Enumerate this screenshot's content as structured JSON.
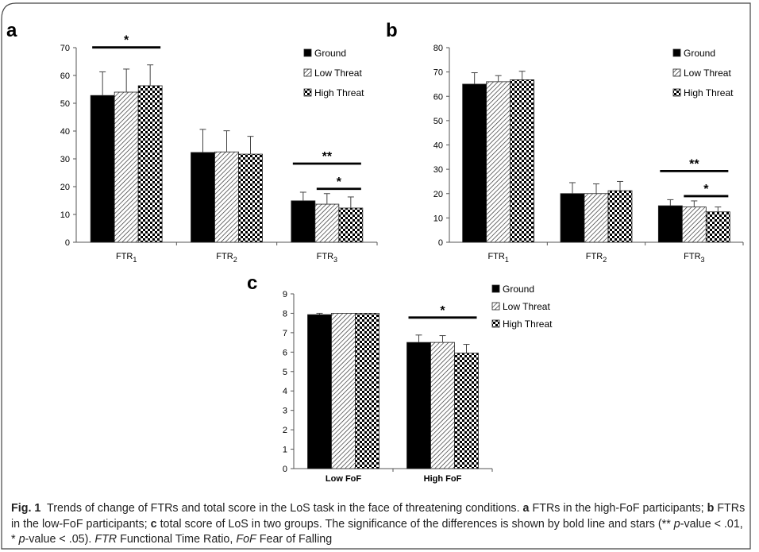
{
  "legend": [
    "Ground",
    "Low Threat",
    "High Threat"
  ],
  "caption": {
    "fig_label": "Fig. 1",
    "p1": "Trends of change of FTRs and total score in the LoS task in the face of threatening conditions.",
    "a": "a",
    "p2": "FTRs in the high-FoF participants;",
    "b": "b",
    "p3": "FTRs in the low-FoF participants;",
    "c": "c",
    "p4": "total score of LoS in two groups. The significance of the differences is shown by bold line and stars (**",
    "pv1": "p",
    "p5": "-value < .01, *",
    "pv2": "p",
    "p6": "-value < .05).",
    "ftr_abbr": "FTR",
    "p7": "Functional Time Ratio,",
    "fof_abbr": "FoF",
    "p8": "Fear of Falling"
  },
  "chart_data": [
    {
      "panel": "a",
      "type": "bar",
      "categories": [
        "FTR1",
        "FTR2",
        "FTR3"
      ],
      "ylim": [
        0,
        70
      ],
      "yticks": [
        0,
        10,
        20,
        30,
        40,
        50,
        60,
        70
      ],
      "series": [
        {
          "name": "Ground",
          "values": [
            52.8,
            32.3,
            14.9
          ],
          "errors": [
            8.5,
            8.3,
            3.1
          ]
        },
        {
          "name": "Low Threat",
          "values": [
            54.0,
            32.5,
            13.7
          ],
          "errors": [
            8.3,
            7.6,
            3.8
          ]
        },
        {
          "name": "High Threat",
          "values": [
            56.3,
            31.7,
            12.3
          ],
          "errors": [
            7.5,
            6.4,
            4.0
          ]
        }
      ],
      "significance": [
        {
          "category": 0,
          "from": 0,
          "to": 2,
          "label": "*"
        },
        {
          "category": 2,
          "from": 0,
          "to": 2,
          "label": "**"
        },
        {
          "category": 2,
          "from": 1,
          "to": 2,
          "label": "*"
        }
      ],
      "grid": false,
      "legend_position": "top-right"
    },
    {
      "panel": "b",
      "type": "bar",
      "categories": [
        "FTR1",
        "FTR2",
        "FTR3"
      ],
      "ylim": [
        0,
        80
      ],
      "yticks": [
        0,
        10,
        20,
        30,
        40,
        50,
        60,
        70,
        80
      ],
      "series": [
        {
          "name": "Ground",
          "values": [
            65.0,
            20.0,
            15.0
          ],
          "errors": [
            4.7,
            4.5,
            2.5
          ]
        },
        {
          "name": "Low Threat",
          "values": [
            66.0,
            20.0,
            14.5
          ],
          "errors": [
            2.5,
            4.0,
            2.5
          ]
        },
        {
          "name": "High Threat",
          "values": [
            66.8,
            21.2,
            12.5
          ],
          "errors": [
            3.5,
            3.8,
            2.0
          ]
        }
      ],
      "significance": [
        {
          "category": 2,
          "from": 0,
          "to": 2,
          "label": "**"
        },
        {
          "category": 2,
          "from": 1,
          "to": 2,
          "label": "*"
        }
      ],
      "grid": false,
      "legend_position": "top-right"
    },
    {
      "panel": "c",
      "type": "bar",
      "categories": [
        "Low FoF",
        "High FoF"
      ],
      "ylim": [
        0,
        9
      ],
      "yticks": [
        0,
        1,
        2,
        3,
        4,
        5,
        6,
        7,
        8,
        9
      ],
      "series": [
        {
          "name": "Ground",
          "values": [
            7.93,
            6.5
          ],
          "errors": [
            0.07,
            0.38
          ]
        },
        {
          "name": "Low Threat",
          "values": [
            8.0,
            6.5
          ],
          "errors": [
            0.0,
            0.35
          ]
        },
        {
          "name": "High Threat",
          "values": [
            8.0,
            5.95
          ],
          "errors": [
            0.0,
            0.45
          ]
        }
      ],
      "significance": [
        {
          "category": 1,
          "from": 0,
          "to": 2,
          "label": "*"
        }
      ],
      "grid": false,
      "legend_position": "top-right"
    }
  ]
}
